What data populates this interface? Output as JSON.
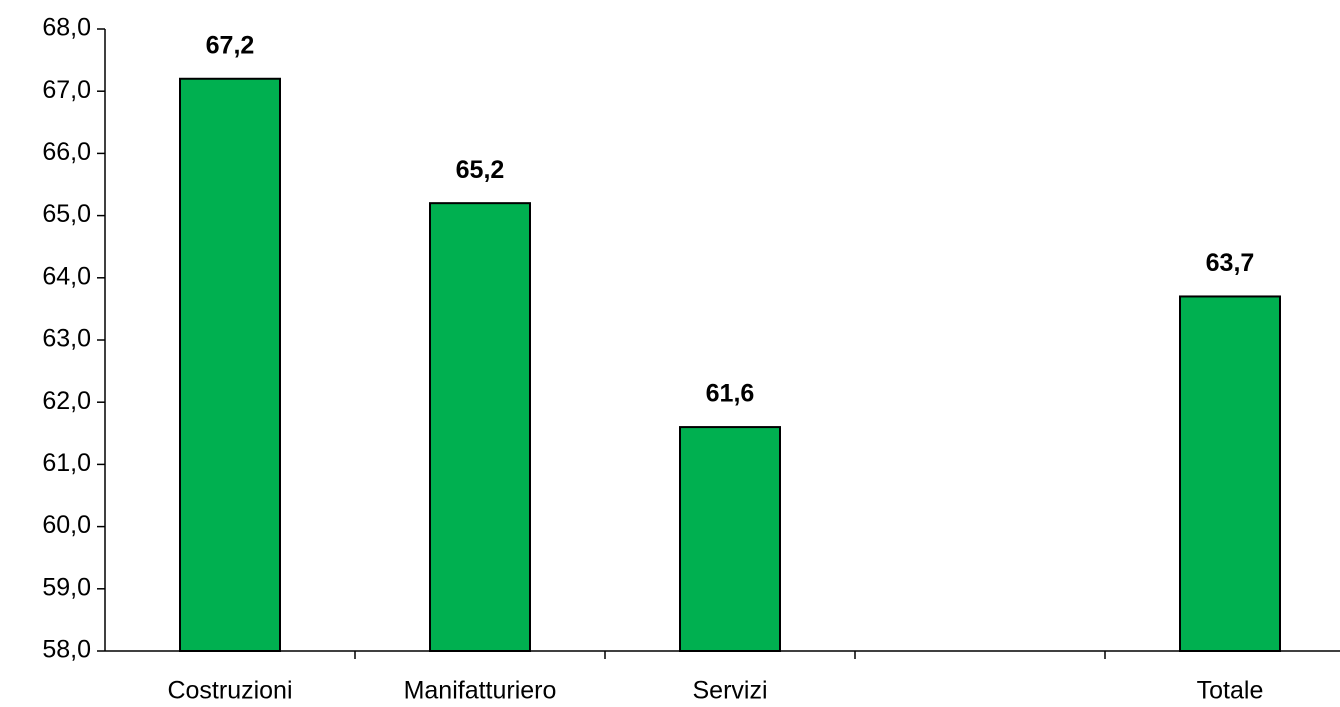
{
  "chart_data": {
    "type": "bar",
    "categories": [
      "Costruzioni",
      "Manifatturiero",
      "Servizi",
      null,
      "Totale"
    ],
    "values": [
      67.2,
      65.2,
      61.6,
      null,
      63.7
    ],
    "value_labels": [
      "67,2",
      "65,2",
      "61,6",
      null,
      "63,7"
    ],
    "color": "#00b050",
    "ylim": [
      58,
      68
    ],
    "yticks": [
      {
        "value": 58,
        "label": "58,0"
      },
      {
        "value": 59,
        "label": "59,0"
      },
      {
        "value": 60,
        "label": "60,0"
      },
      {
        "value": 61,
        "label": "61,0"
      },
      {
        "value": 62,
        "label": "62,0"
      },
      {
        "value": 63,
        "label": "63,0"
      },
      {
        "value": 64,
        "label": "64,0"
      },
      {
        "value": 65,
        "label": "65,0"
      },
      {
        "value": 66,
        "label": "66,0"
      },
      {
        "value": 67,
        "label": "67,0"
      },
      {
        "value": 68,
        "label": "68,0"
      }
    ],
    "grid": false
  }
}
